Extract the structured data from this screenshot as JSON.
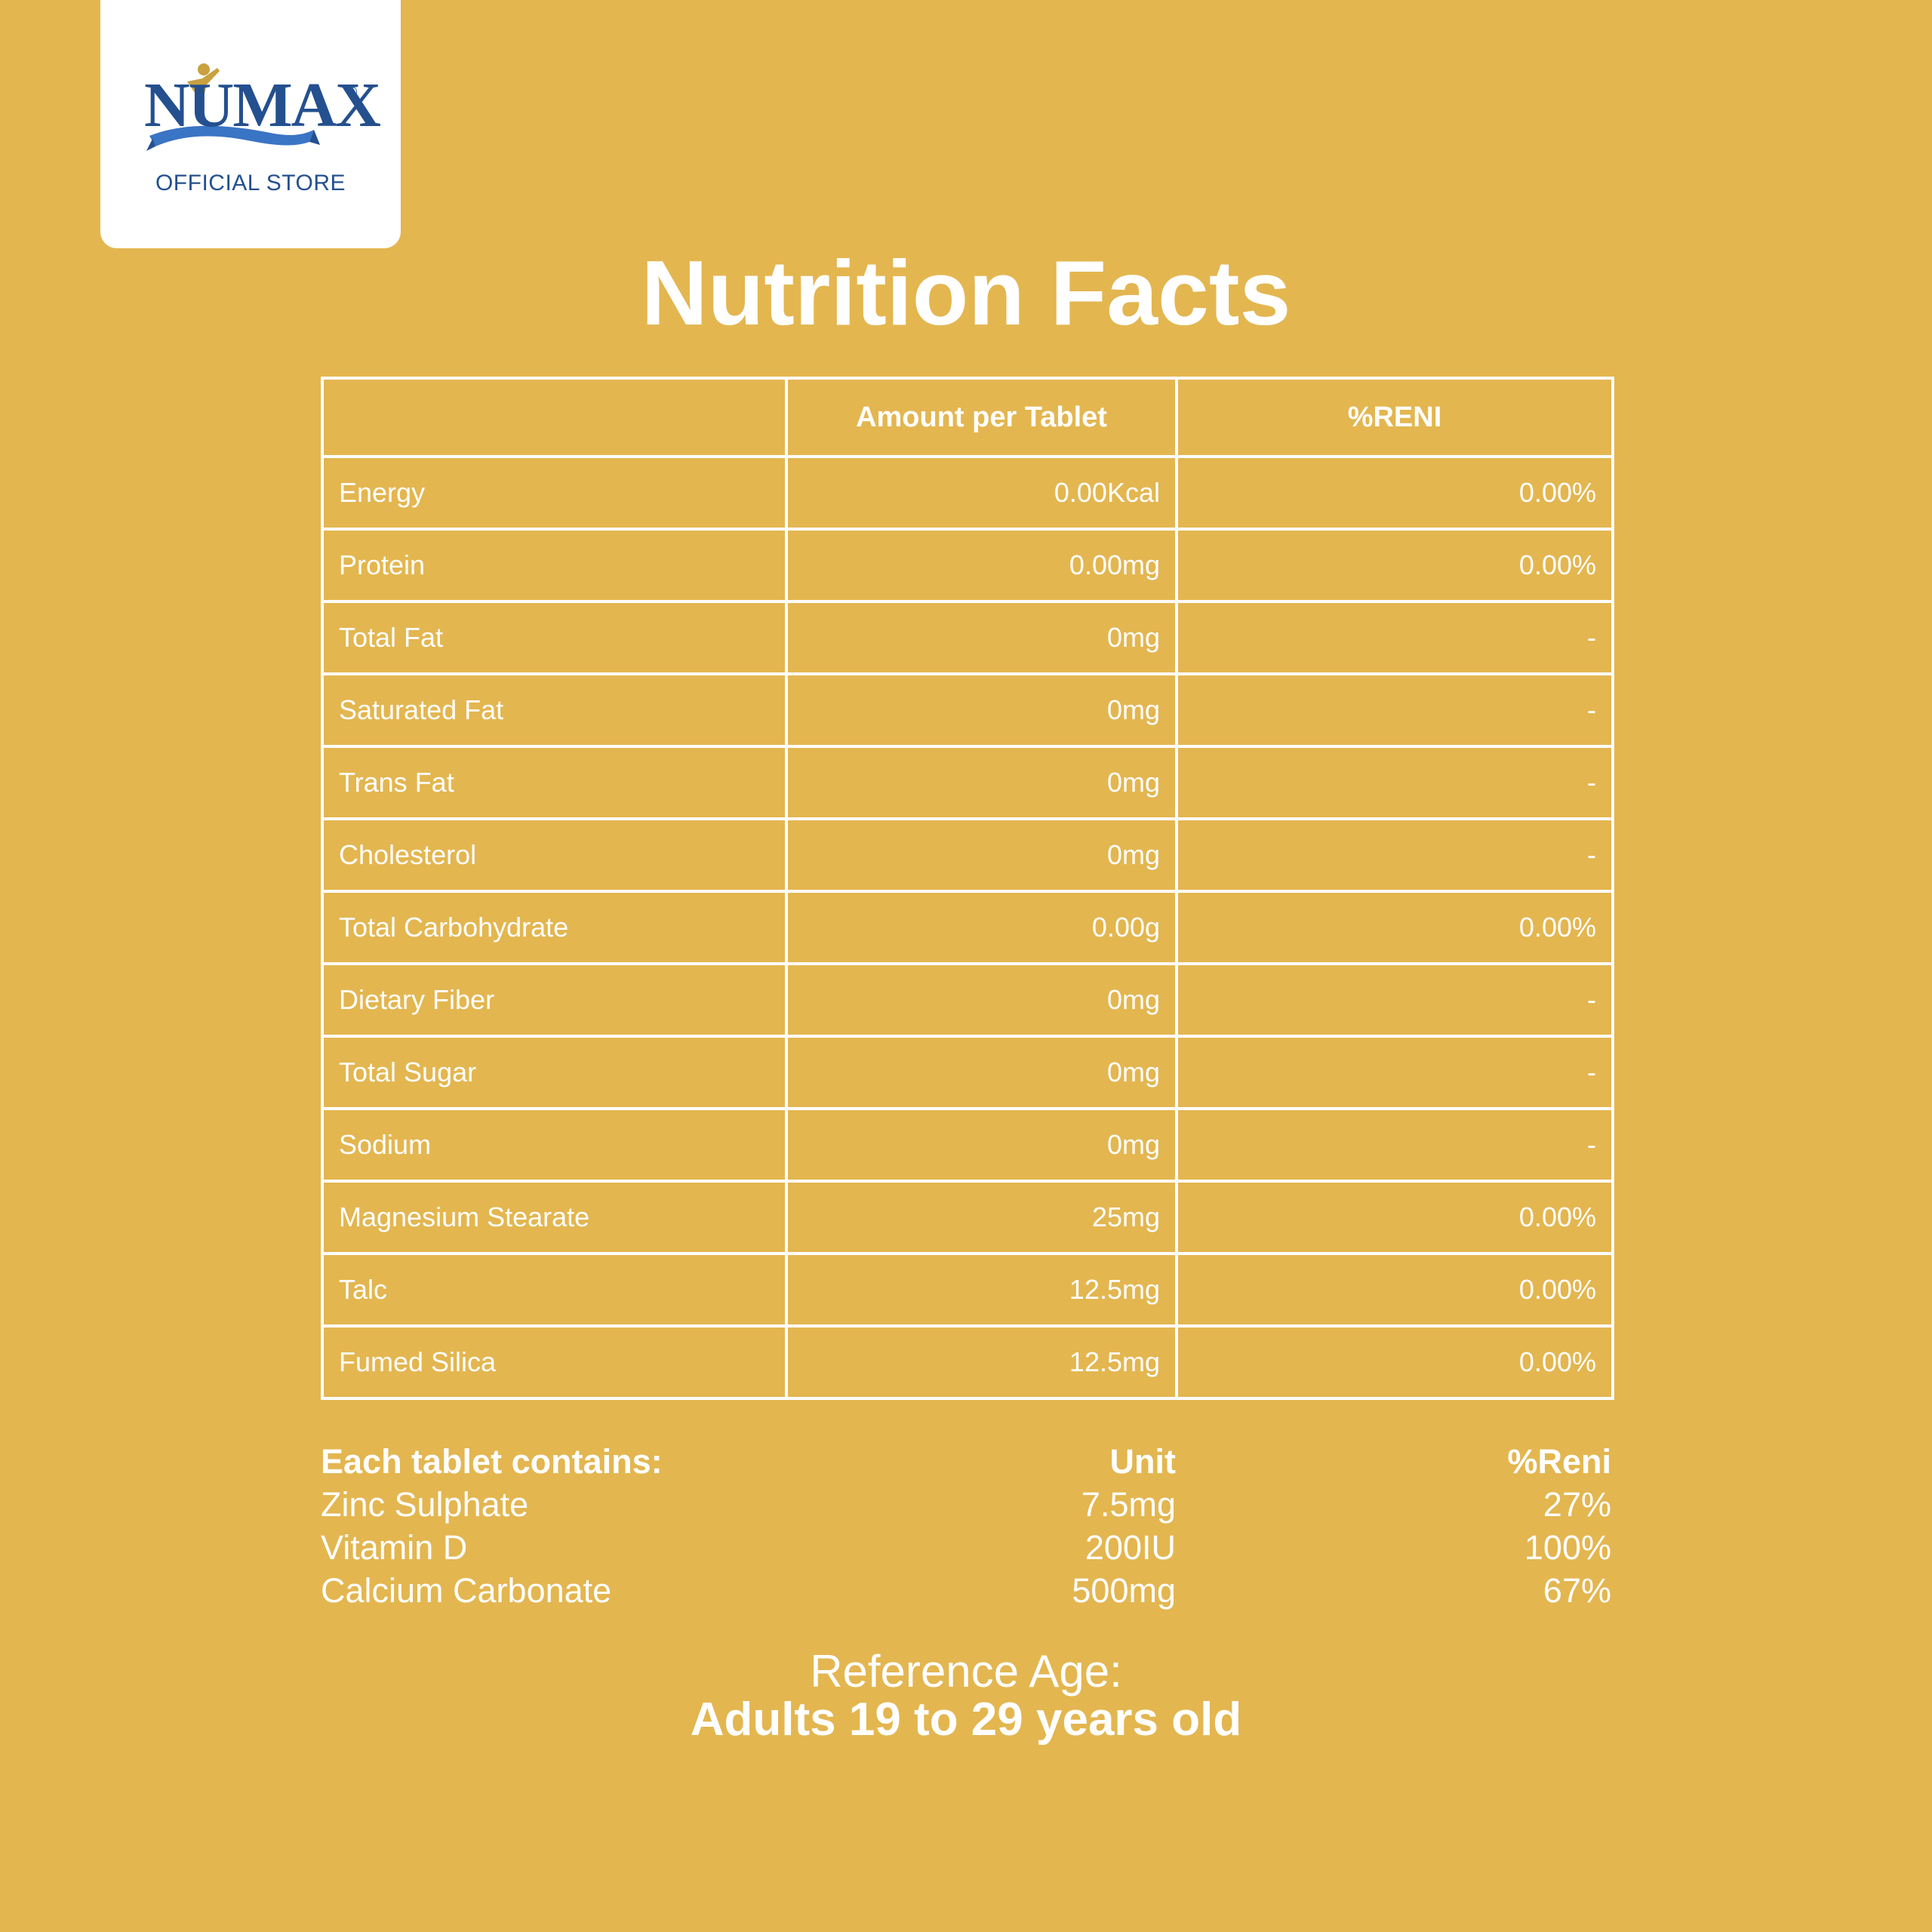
{
  "brand": {
    "name": "NUMAX",
    "registered_mark": "®",
    "store_label": "OFFICIAL STORE"
  },
  "title": "Nutrition Facts",
  "table": {
    "headers": [
      "",
      "Amount per Tablet",
      "%RENI"
    ],
    "rows": [
      {
        "name": "Energy",
        "amount": "0.00Kcal",
        "reni": "0.00%"
      },
      {
        "name": "Protein",
        "amount": "0.00mg",
        "reni": "0.00%"
      },
      {
        "name": "Total Fat",
        "amount": "0mg",
        "reni": "-"
      },
      {
        "name": "Saturated Fat",
        "amount": "0mg",
        "reni": "-"
      },
      {
        "name": "Trans Fat",
        "amount": "0mg",
        "reni": "-"
      },
      {
        "name": "Cholesterol",
        "amount": "0mg",
        "reni": "-"
      },
      {
        "name": "Total Carbohydrate",
        "amount": "0.00g",
        "reni": "0.00%"
      },
      {
        "name": "Dietary Fiber",
        "amount": "0mg",
        "reni": "-"
      },
      {
        "name": "Total Sugar",
        "amount": "0mg",
        "reni": "-"
      },
      {
        "name": "Sodium",
        "amount": "0mg",
        "reni": "-"
      },
      {
        "name": "Magnesium Stearate",
        "amount": "25mg",
        "reni": "0.00%"
      },
      {
        "name": "Talc",
        "amount": "12.5mg",
        "reni": "0.00%"
      },
      {
        "name": "Fumed Silica",
        "amount": "12.5mg",
        "reni": "0.00%"
      }
    ]
  },
  "contains": {
    "heading": "Each tablet contains:",
    "unit_label": "Unit",
    "reni_label": "%Reni",
    "items": [
      {
        "name": "Zinc Sulphate",
        "unit": "7.5mg",
        "reni": "27%"
      },
      {
        "name": "Vitamin D",
        "unit": "200IU",
        "reni": "100%"
      },
      {
        "name": "Calcium Carbonate",
        "unit": "500mg",
        "reni": "67%"
      }
    ]
  },
  "reference": {
    "label": "Reference Age:",
    "value": "Adults 19 to 29 years old"
  },
  "colors": {
    "background": "#e3b650",
    "text": "#ffffff",
    "brand_blue": "#24508f",
    "brand_gold": "#c9a13f"
  }
}
